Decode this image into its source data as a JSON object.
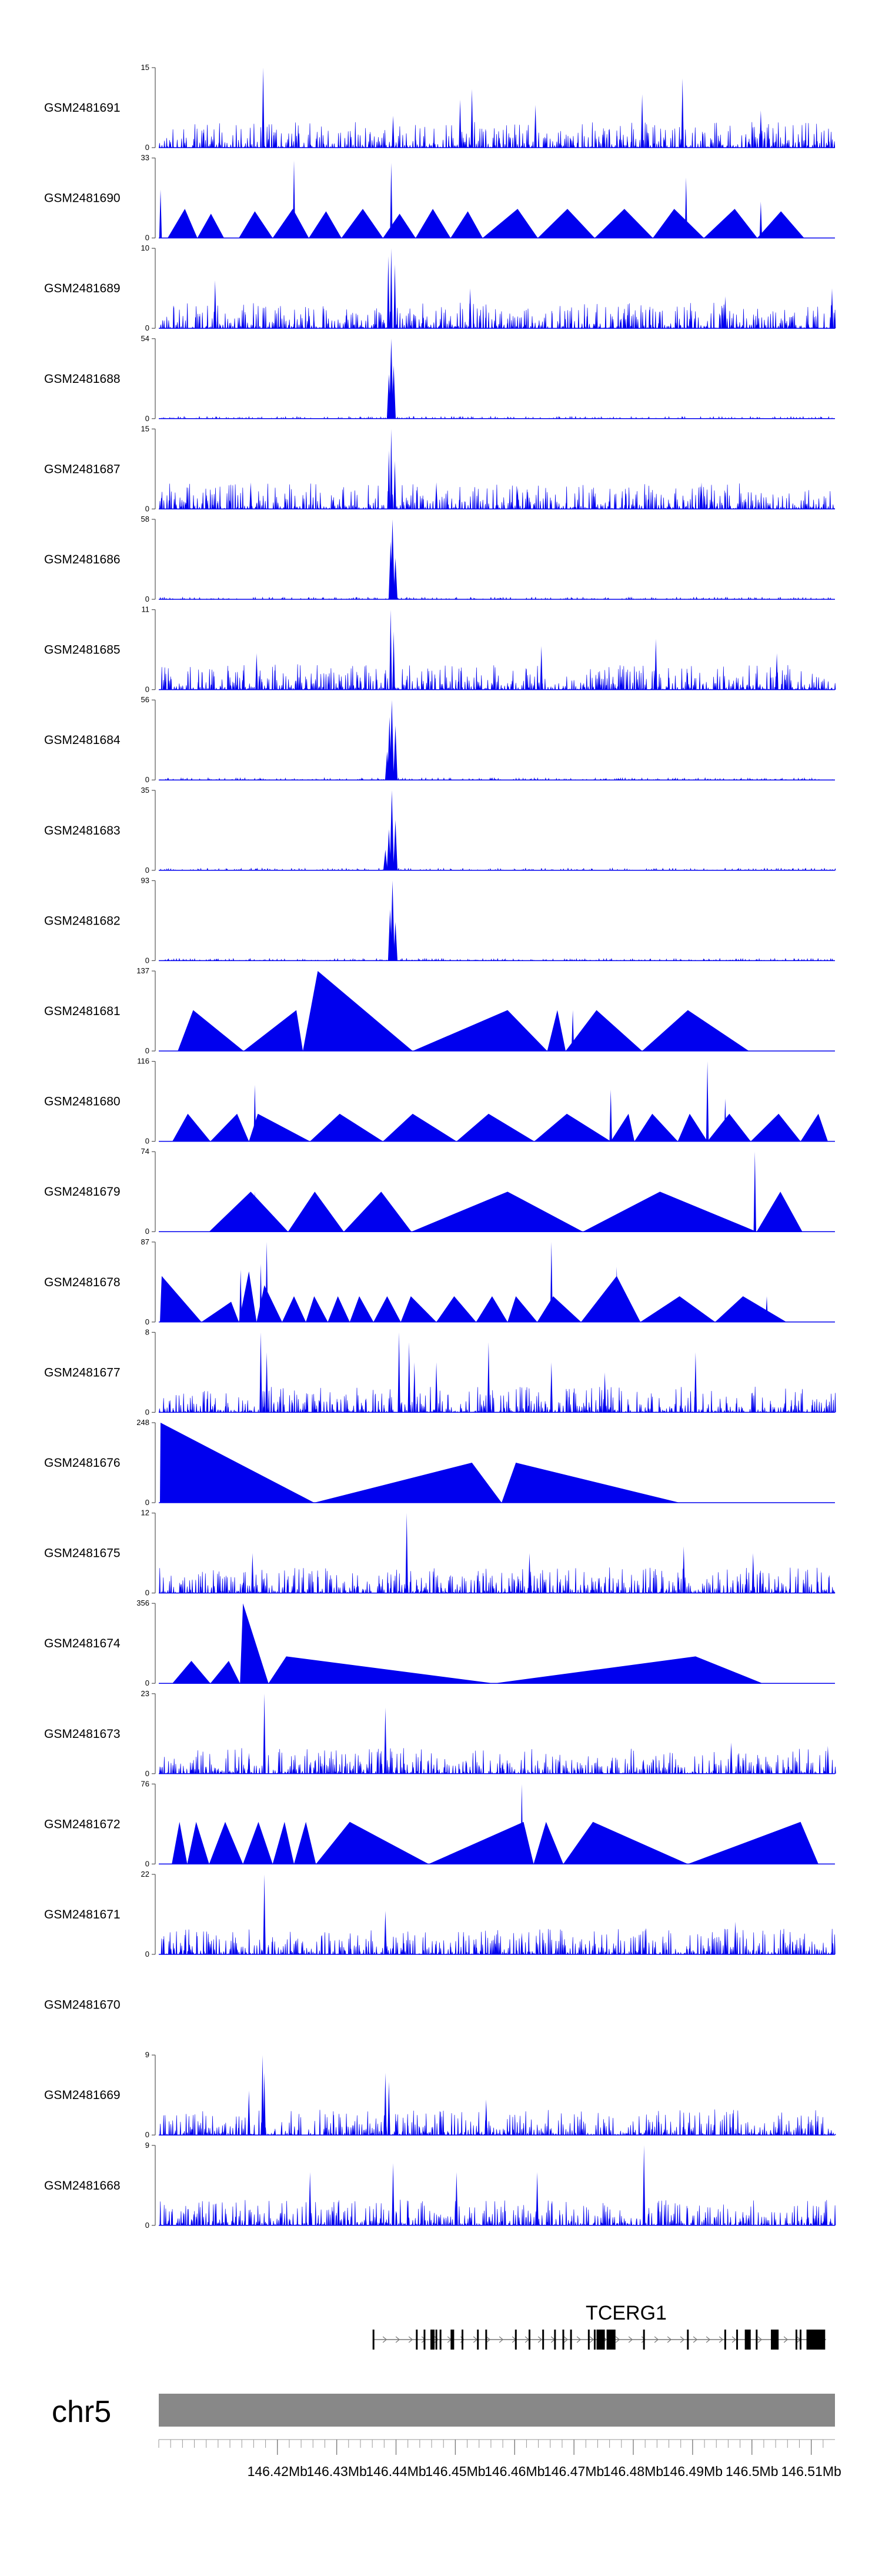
{
  "chart_data": {
    "type": "area",
    "title": "",
    "series_color": "#0000ee",
    "axis_color": "#555555",
    "ideogram_color": "#888888",
    "xlim": [
      146.4,
      146.514
    ],
    "tracks": [
      {
        "name": "GSM2481691",
        "ymax": 15,
        "ymin": 0,
        "style": "dense",
        "peaks": [
          [
            146.4176,
            15
          ],
          [
            146.4508,
            9
          ],
          [
            146.4528,
            11
          ],
          [
            146.4635,
            8
          ],
          [
            146.4815,
            10
          ],
          [
            146.4883,
            13
          ],
          [
            146.4395,
            6
          ],
          [
            146.5015,
            7
          ]
        ]
      },
      {
        "name": "GSM2481690",
        "ymax": 33,
        "ymin": 0,
        "style": "sparse",
        "triangles": [
          [
            146.4015,
            146.4044,
            146.4065,
            12
          ],
          [
            146.4065,
            146.4088,
            146.411,
            10
          ],
          [
            146.4135,
            146.4162,
            146.4192,
            11
          ],
          [
            146.4192,
            146.4226,
            146.4253,
            12
          ],
          [
            146.4253,
            146.4282,
            146.4308,
            11
          ],
          [
            146.4308,
            146.4344,
            146.4378,
            12
          ],
          [
            146.4378,
            146.4406,
            146.4433,
            10
          ],
          [
            146.4433,
            146.4462,
            146.4492,
            12
          ],
          [
            146.4492,
            146.4521,
            146.4546,
            11
          ],
          [
            146.4546,
            146.4605,
            146.4639,
            12
          ],
          [
            146.4639,
            146.4689,
            146.4735,
            12
          ],
          [
            146.4735,
            146.4785,
            146.4833,
            12
          ],
          [
            146.4833,
            146.4869,
            146.4919,
            12
          ],
          [
            146.4919,
            146.4971,
            146.5009,
            12
          ],
          [
            146.5009,
            146.5049,
            146.5088,
            11
          ]
        ],
        "peaks": [
          [
            146.4003,
            20
          ],
          [
            146.4228,
            32
          ],
          [
            146.4392,
            31
          ],
          [
            146.4889,
            25
          ],
          [
            146.5015,
            15
          ]
        ]
      },
      {
        "name": "GSM2481689",
        "ymax": 10,
        "ymin": 0,
        "style": "dense",
        "peaks": [
          [
            146.4387,
            9
          ],
          [
            146.4392,
            10
          ],
          [
            146.4398,
            8
          ],
          [
            146.4095,
            6
          ],
          [
            146.4525,
            5
          ],
          [
            146.4955,
            4
          ],
          [
            146.5135,
            5
          ]
        ]
      },
      {
        "name": "GSM2481688",
        "ymax": 54,
        "ymin": 0,
        "style": "peak",
        "peaks": [
          [
            146.4392,
            54
          ],
          [
            146.4396,
            36
          ],
          [
            146.4388,
            30
          ]
        ]
      },
      {
        "name": "GSM2481687",
        "ymax": 15,
        "ymin": 0,
        "style": "dense",
        "peaks": [
          [
            146.4392,
            15
          ],
          [
            146.4388,
            11
          ],
          [
            146.4398,
            9
          ],
          [
            146.4155,
            5
          ],
          [
            146.4468,
            5
          ],
          [
            146.4605,
            4
          ],
          [
            146.4915,
            5
          ]
        ]
      },
      {
        "name": "GSM2481686",
        "ymax": 58,
        "ymin": 0,
        "style": "peak",
        "peaks": [
          [
            146.4394,
            58
          ],
          [
            146.4391,
            42
          ],
          [
            146.4399,
            30
          ]
        ]
      },
      {
        "name": "GSM2481685",
        "ymax": 11,
        "ymin": 0,
        "style": "dense",
        "peaks": [
          [
            146.4391,
            11
          ],
          [
            146.4396,
            8
          ],
          [
            146.4645,
            6
          ],
          [
            146.4838,
            7
          ],
          [
            146.5042,
            5
          ],
          [
            146.4165,
            5
          ]
        ]
      },
      {
        "name": "GSM2481684",
        "ymax": 56,
        "ymin": 0,
        "style": "peak",
        "peaks": [
          [
            146.4393,
            56
          ],
          [
            146.4389,
            44
          ],
          [
            146.4399,
            38
          ],
          [
            146.4385,
            20
          ]
        ]
      },
      {
        "name": "GSM2481683",
        "ymax": 35,
        "ymin": 0,
        "style": "peak",
        "peaks": [
          [
            146.4393,
            35
          ],
          [
            146.4388,
            18
          ],
          [
            146.4399,
            22
          ],
          [
            146.4382,
            9
          ]
        ]
      },
      {
        "name": "GSM2481682",
        "ymax": 93,
        "ymin": 0,
        "style": "peak",
        "peaks": [
          [
            146.4394,
            93
          ],
          [
            146.439,
            60
          ],
          [
            146.4399,
            45
          ]
        ]
      },
      {
        "name": "GSM2481681",
        "ymax": 137,
        "ymin": 0,
        "style": "sparse",
        "triangles": [
          [
            146.4032,
            146.4058,
            146.4143,
            70
          ],
          [
            146.4143,
            146.4232,
            146.4243,
            70
          ],
          [
            146.4243,
            146.4268,
            146.4428,
            137
          ],
          [
            146.4428,
            146.4588,
            146.4655,
            70
          ],
          [
            146.4655,
            146.4672,
            146.4686,
            70
          ],
          [
            146.4686,
            146.4738,
            146.4815,
            70
          ],
          [
            146.4815,
            146.4892,
            146.4995,
            70
          ]
        ],
        "peaks": [
          [
            146.4698,
            70
          ]
        ]
      },
      {
        "name": "GSM2481680",
        "ymax": 116,
        "ymin": 0,
        "style": "sparse",
        "triangles": [
          [
            146.4023,
            146.4049,
            146.4087,
            40
          ],
          [
            146.4087,
            146.4132,
            146.4152,
            40
          ],
          [
            146.4152,
            146.4167,
            146.4255,
            40
          ],
          [
            146.4255,
            146.4305,
            146.4378,
            40
          ],
          [
            146.4378,
            146.4428,
            146.4502,
            40
          ],
          [
            146.4502,
            146.4556,
            146.4633,
            40
          ],
          [
            146.4633,
            146.4688,
            146.4762,
            40
          ],
          [
            146.4762,
            146.4792,
            146.4802,
            40
          ],
          [
            146.4802,
            146.4832,
            146.4875,
            40
          ],
          [
            146.4875,
            146.4895,
            146.4925,
            40
          ],
          [
            146.4925,
            146.4962,
            146.4998,
            40
          ],
          [
            146.4998,
            146.5045,
            146.5082,
            40
          ],
          [
            146.5082,
            146.5112,
            146.5128,
            40
          ]
        ],
        "peaks": [
          [
            146.4162,
            82
          ],
          [
            146.4925,
            116
          ],
          [
            146.4955,
            62
          ],
          [
            146.4762,
            75
          ]
        ]
      },
      {
        "name": "GSM2481679",
        "ymax": 74,
        "ymin": 0,
        "style": "sparse",
        "triangles": [
          [
            146.4085,
            146.4155,
            146.4218,
            37
          ],
          [
            146.4218,
            146.4263,
            146.4312,
            37
          ],
          [
            146.4312,
            146.4375,
            146.4426,
            37
          ],
          [
            146.4426,
            146.4588,
            146.4715,
            37
          ],
          [
            146.4715,
            146.4845,
            146.5008,
            37
          ],
          [
            146.5008,
            146.5048,
            146.5085,
            37
          ]
        ],
        "peaks": [
          [
            146.4162,
            37
          ],
          [
            146.5005,
            74
          ]
        ]
      },
      {
        "name": "GSM2481678",
        "ymax": 87,
        "ymin": 0,
        "style": "sparse",
        "triangles": [
          [
            146.4002,
            146.4005,
            146.4072,
            50
          ],
          [
            146.4072,
            146.4122,
            146.4135,
            22
          ],
          [
            146.4135,
            146.4152,
            146.4165,
            55
          ],
          [
            146.4165,
            146.4178,
            146.4208,
            40
          ],
          [
            146.4208,
            146.4228,
            146.4248,
            28
          ],
          [
            146.4248,
            146.4262,
            146.4285,
            28
          ],
          [
            146.4285,
            146.4302,
            146.4322,
            28
          ],
          [
            146.4322,
            146.4338,
            146.4362,
            28
          ],
          [
            146.4362,
            146.4385,
            146.4408,
            28
          ],
          [
            146.4408,
            146.4425,
            146.4468,
            28
          ],
          [
            146.4468,
            146.4498,
            146.4535,
            28
          ],
          [
            146.4535,
            146.4562,
            146.4588,
            28
          ],
          [
            146.4588,
            146.4602,
            146.4638,
            28
          ],
          [
            146.4638,
            146.4665,
            146.4712,
            28
          ],
          [
            146.4712,
            146.4772,
            146.4812,
            50
          ],
          [
            146.4812,
            146.4878,
            146.4938,
            28
          ],
          [
            146.4938,
            146.4985,
            146.5058,
            28
          ]
        ],
        "peaks": [
          [
            146.4138,
            57
          ],
          [
            146.4172,
            63
          ],
          [
            146.4182,
            87
          ],
          [
            146.4662,
            87
          ],
          [
            146.4772,
            60
          ],
          [
            146.5025,
            28
          ]
        ]
      },
      {
        "name": "GSM2481677",
        "ymax": 8,
        "ymin": 0,
        "style": "dense",
        "peaks": [
          [
            146.4172,
            8
          ],
          [
            146.4182,
            6
          ],
          [
            146.4405,
            8
          ],
          [
            146.4422,
            7
          ],
          [
            146.4431,
            5
          ],
          [
            146.4468,
            5
          ],
          [
            146.4556,
            7
          ],
          [
            146.4662,
            5
          ],
          [
            146.4752,
            4
          ],
          [
            146.4905,
            6
          ]
        ]
      },
      {
        "name": "GSM2481676",
        "ymax": 248,
        "ymin": 0,
        "style": "sparse",
        "triangles": [
          [
            146.4002,
            146.4003,
            146.4262,
            248
          ],
          [
            146.4262,
            146.4528,
            146.4578,
            124
          ],
          [
            146.4578,
            146.4602,
            146.4878,
            124
          ]
        ],
        "peaks": []
      },
      {
        "name": "GSM2481675",
        "ymax": 12,
        "ymin": 0,
        "style": "dense",
        "peaks": [
          [
            146.4418,
            12
          ],
          [
            146.4158,
            6
          ],
          [
            146.4625,
            6
          ],
          [
            146.4885,
            7
          ],
          [
            146.5002,
            6
          ]
        ]
      },
      {
        "name": "GSM2481674",
        "ymax": 356,
        "ymin": 0,
        "style": "sparse",
        "triangles": [
          [
            146.4023,
            146.4055,
            146.4087,
            100
          ],
          [
            146.4087,
            146.4118,
            146.4137,
            100
          ],
          [
            146.4137,
            146.4142,
            146.4185,
            356
          ],
          [
            146.4185,
            146.4215,
            146.4565,
            120
          ],
          [
            146.4565,
            146.4905,
            146.5018,
            120
          ]
        ],
        "peaks": []
      },
      {
        "name": "GSM2481673",
        "ymax": 23,
        "ymin": 0,
        "style": "dense",
        "peaks": [
          [
            146.4178,
            23
          ],
          [
            146.4382,
            19
          ],
          [
            146.4152,
            6
          ],
          [
            146.4965,
            9
          ],
          [
            146.5128,
            8
          ]
        ]
      },
      {
        "name": "GSM2481672",
        "ymax": 76,
        "ymin": 0,
        "style": "sparse",
        "triangles": [
          [
            146.4022,
            146.4035,
            146.4048,
            40
          ],
          [
            146.4048,
            146.4063,
            146.4085,
            40
          ],
          [
            146.4085,
            146.4112,
            146.4142,
            40
          ],
          [
            146.4142,
            146.4168,
            146.4192,
            40
          ],
          [
            146.4192,
            146.4212,
            146.4228,
            40
          ],
          [
            146.4228,
            146.4248,
            146.4265,
            40
          ],
          [
            146.4265,
            146.4322,
            146.4455,
            40
          ],
          [
            146.4455,
            146.4615,
            146.4632,
            40
          ],
          [
            146.4632,
            146.4653,
            146.4682,
            40
          ],
          [
            146.4682,
            146.4732,
            146.4892,
            40
          ],
          [
            146.4892,
            146.5082,
            146.5112,
            40
          ]
        ],
        "peaks": [
          [
            146.4612,
            76
          ],
          [
            146.4215,
            32
          ]
        ]
      },
      {
        "name": "GSM2481671",
        "ymax": 22,
        "ymin": 0,
        "style": "dense",
        "peaks": [
          [
            146.4178,
            22
          ],
          [
            146.4382,
            12
          ],
          [
            146.4972,
            9
          ],
          [
            146.4612,
            6
          ]
        ]
      },
      {
        "name": "GSM2481670",
        "ymax": null,
        "ymin": null,
        "style": "empty",
        "peaks": []
      },
      {
        "name": "GSM2481669",
        "ymax": 9,
        "ymin": 0,
        "style": "dense",
        "peaks": [
          [
            146.4175,
            9
          ],
          [
            146.4178,
            7
          ],
          [
            146.4382,
            7
          ],
          [
            146.4388,
            6
          ],
          [
            146.4152,
            5
          ],
          [
            146.4552,
            4
          ]
        ]
      },
      {
        "name": "GSM2481668",
        "ymax": 9,
        "ymin": 0,
        "style": "dense",
        "peaks": [
          [
            146.4818,
            9
          ],
          [
            146.4395,
            7
          ],
          [
            146.4502,
            6
          ],
          [
            146.4255,
            6
          ],
          [
            146.4638,
            6
          ]
        ]
      }
    ],
    "gene": {
      "name": "TCERG1",
      "start": 146.4362,
      "end": 146.5125,
      "strand": "+",
      "exons": [
        146.4362,
        146.4435,
        146.4448,
        146.4468,
        146.4475,
        146.4495,
        146.4512,
        146.4538,
        146.4552,
        146.4602,
        146.4625,
        146.4648,
        146.4668,
        146.4682,
        146.4695,
        146.4725,
        146.4735,
        146.4745,
        146.4768,
        146.4818,
        146.4892,
        146.4955,
        146.4975,
        146.4995,
        146.5008,
        146.5075,
        146.5082,
        146.5122
      ],
      "thick_exons": [
        [
          146.4458,
          146.4465
        ],
        [
          146.4492,
          146.4498
        ],
        [
          146.4738,
          146.4752
        ],
        [
          146.4755,
          146.477
        ],
        [
          146.4988,
          146.4998
        ],
        [
          146.5032,
          146.5045
        ],
        [
          146.5092,
          146.5122
        ]
      ]
    },
    "chromosome": "chr5",
    "x_ticks": [
      146.42,
      146.43,
      146.44,
      146.45,
      146.46,
      146.47,
      146.48,
      146.49,
      146.5,
      146.51
    ],
    "x_tick_labels": [
      "146.42Mb",
      "146.43Mb",
      "146.44Mb",
      "146.45Mb",
      "146.46Mb",
      "146.47Mb",
      "146.48Mb",
      "146.49Mb",
      "146.5Mb",
      "146.51Mb"
    ],
    "minor_tick_step": 0.002
  }
}
